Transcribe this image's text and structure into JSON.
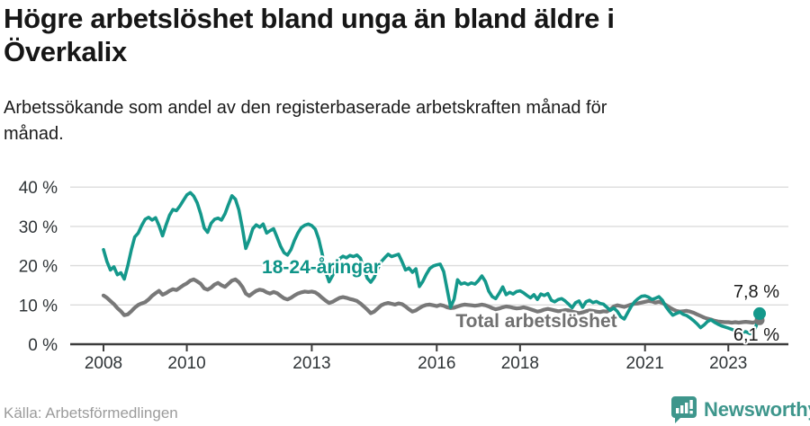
{
  "header": {
    "title_lines": [
      "Högre arbetslöshet bland unga än bland äldre i",
      "Överkalix"
    ],
    "subtitle_lines": [
      "Arbetssökande som andel av den registerbaserade arbetskraften månad för",
      "månad."
    ]
  },
  "footer": {
    "source": "Källa: Arbetsförmedlingen",
    "brand": "Newsworthy"
  },
  "colors": {
    "youth": "#14988b",
    "total": "#787878",
    "grid": "#dcdcdc",
    "axis": "#3c3c3c",
    "brand": "#3e968c"
  },
  "chart_data": {
    "type": "line",
    "title": "Högre arbetslöshet bland unga än bland äldre i Överkalix",
    "subtitle": "Arbetssökande som andel av den registerbaserade arbetskraften månad för månad.",
    "unit": "%",
    "frequency": "monthly",
    "x_range": [
      "2008-01",
      "2023-10"
    ],
    "ylim": [
      0,
      40
    ],
    "grid": "horizontal",
    "legend_position": "inline-labels",
    "yticks": [
      {
        "value": 0,
        "label": "0 %"
      },
      {
        "value": 10,
        "label": "10 %"
      },
      {
        "value": 20,
        "label": "20 %"
      },
      {
        "value": 30,
        "label": "30 %"
      },
      {
        "value": 40,
        "label": "40 %"
      }
    ],
    "xticks": [
      {
        "label": "2008",
        "month_index": 0
      },
      {
        "label": "2010",
        "month_index": 24
      },
      {
        "label": "2013",
        "month_index": 60
      },
      {
        "label": "2016",
        "month_index": 96
      },
      {
        "label": "2018",
        "month_index": 120
      },
      {
        "label": "2021",
        "month_index": 156
      },
      {
        "label": "2023",
        "month_index": 180
      }
    ],
    "series": [
      {
        "name": "18-24-åringar",
        "color": "#14988b",
        "end_value": 7.8,
        "end_label": "7,8 %",
        "values": [
          24.1,
          21.0,
          18.9,
          19.7,
          17.7,
          18.2,
          16.6,
          20.0,
          24.0,
          27.3,
          28.3,
          30.2,
          31.8,
          32.3,
          31.6,
          32.2,
          30.2,
          27.6,
          30.3,
          32.8,
          34.3,
          34.0,
          35.2,
          36.6,
          38.0,
          38.6,
          37.7,
          36.0,
          33.2,
          29.6,
          28.5,
          30.8,
          31.8,
          32.1,
          31.6,
          33.2,
          35.6,
          37.8,
          36.9,
          34.2,
          29.6,
          24.4,
          26.6,
          29.4,
          30.4,
          29.8,
          30.6,
          28.3,
          28.9,
          29.4,
          27.2,
          25.0,
          23.3,
          22.7,
          24.1,
          26.4,
          28.3,
          29.7,
          30.3,
          30.6,
          30.2,
          29.3,
          26.8,
          23.0,
          18.5,
          15.9,
          17.5,
          20.0,
          21.8,
          22.4,
          22.0,
          22.6,
          22.3,
          22.7,
          21.9,
          19.3,
          16.8,
          15.8,
          17.0,
          19.2,
          21.0,
          22.0,
          22.9,
          22.3,
          22.6,
          22.9,
          21.0,
          18.9,
          19.4,
          18.3,
          19.2,
          14.7,
          16.0,
          17.8,
          19.3,
          19.9,
          20.2,
          20.4,
          18.5,
          14.0,
          9.4,
          11.5,
          16.4,
          15.3,
          15.6,
          15.2,
          15.6,
          15.3,
          16.2,
          17.4,
          16.0,
          13.5,
          12.1,
          11.6,
          13.0,
          14.6,
          12.6,
          13.2,
          12.8,
          13.4,
          13.6,
          13.1,
          12.4,
          11.8,
          12.6,
          11.4,
          12.8,
          12.4,
          12.9,
          11.2,
          10.8,
          11.4,
          11.6,
          11.0,
          10.2,
          9.3,
          10.6,
          11.0,
          9.4,
          10.8,
          11.2,
          10.6,
          10.9,
          10.4,
          10.2,
          9.4,
          8.6,
          9.2,
          8.4,
          7.0,
          6.4,
          8.0,
          9.6,
          10.8,
          11.6,
          12.2,
          12.3,
          12.0,
          11.4,
          11.7,
          12.1,
          11.2,
          9.6,
          8.4,
          7.4,
          7.8,
          8.2,
          7.6,
          7.3,
          6.7,
          6.0,
          5.2,
          4.2,
          4.9,
          5.8,
          6.2,
          5.6,
          5.1,
          4.7,
          4.4,
          4.1,
          3.8,
          3.4,
          3.1,
          2.9,
          3.2,
          2.8,
          2.6,
          4.6,
          7.8
        ]
      },
      {
        "name": "Total arbetslöshet",
        "color": "#787878",
        "end_value": 6.1,
        "end_label": "6,1 %",
        "values": [
          12.4,
          11.8,
          11.0,
          10.2,
          9.2,
          8.4,
          7.4,
          7.6,
          8.4,
          9.3,
          10.0,
          10.4,
          10.7,
          11.4,
          12.3,
          13.0,
          13.6,
          12.6,
          13.0,
          13.6,
          14.0,
          13.8,
          14.4,
          15.0,
          15.5,
          16.2,
          16.5,
          16.0,
          15.4,
          14.2,
          13.9,
          14.4,
          15.2,
          15.6,
          15.0,
          14.6,
          15.4,
          16.2,
          16.5,
          15.8,
          14.6,
          12.9,
          12.3,
          13.0,
          13.6,
          13.9,
          13.7,
          13.2,
          12.9,
          13.3,
          13.0,
          12.3,
          11.7,
          11.4,
          11.8,
          12.4,
          12.9,
          13.2,
          13.4,
          13.3,
          13.4,
          13.2,
          12.6,
          11.8,
          11.1,
          10.5,
          10.8,
          11.3,
          11.8,
          12.0,
          11.8,
          11.5,
          11.3,
          11.0,
          10.4,
          9.6,
          8.8,
          7.9,
          8.3,
          9.1,
          9.9,
          10.3,
          10.5,
          10.3,
          10.1,
          10.4,
          10.2,
          9.6,
          8.9,
          8.3,
          8.6,
          9.2,
          9.7,
          10.0,
          10.1,
          9.9,
          9.7,
          10.0,
          9.8,
          9.4,
          9.2,
          9.3,
          9.6,
          9.9,
          10.1,
          10.0,
          9.9,
          9.8,
          9.9,
          10.1,
          9.9,
          9.6,
          9.2,
          8.9,
          9.1,
          9.4,
          9.6,
          9.5,
          9.3,
          9.1,
          9.2,
          9.4,
          9.2,
          8.9,
          8.6,
          8.3,
          8.5,
          8.8,
          9.0,
          8.8,
          8.6,
          8.4,
          8.5,
          8.7,
          8.6,
          8.3,
          8.1,
          7.9,
          8.1,
          8.4,
          8.6,
          8.5,
          8.3,
          8.2,
          8.4,
          8.3,
          8.8,
          9.6,
          9.9,
          9.7,
          9.5,
          9.8,
          10.1,
          10.3,
          10.4,
          10.6,
          10.8,
          11.0,
          10.9,
          10.6,
          10.8,
          10.5,
          10.0,
          9.4,
          8.9,
          8.5,
          8.3,
          8.4,
          8.5,
          8.3,
          8.0,
          7.6,
          7.2,
          6.8,
          6.5,
          6.3,
          6.0,
          5.8,
          5.7,
          5.6,
          5.6,
          5.5,
          5.6,
          5.5,
          5.6,
          5.7,
          5.6,
          5.5,
          5.7,
          6.1
        ]
      }
    ]
  }
}
